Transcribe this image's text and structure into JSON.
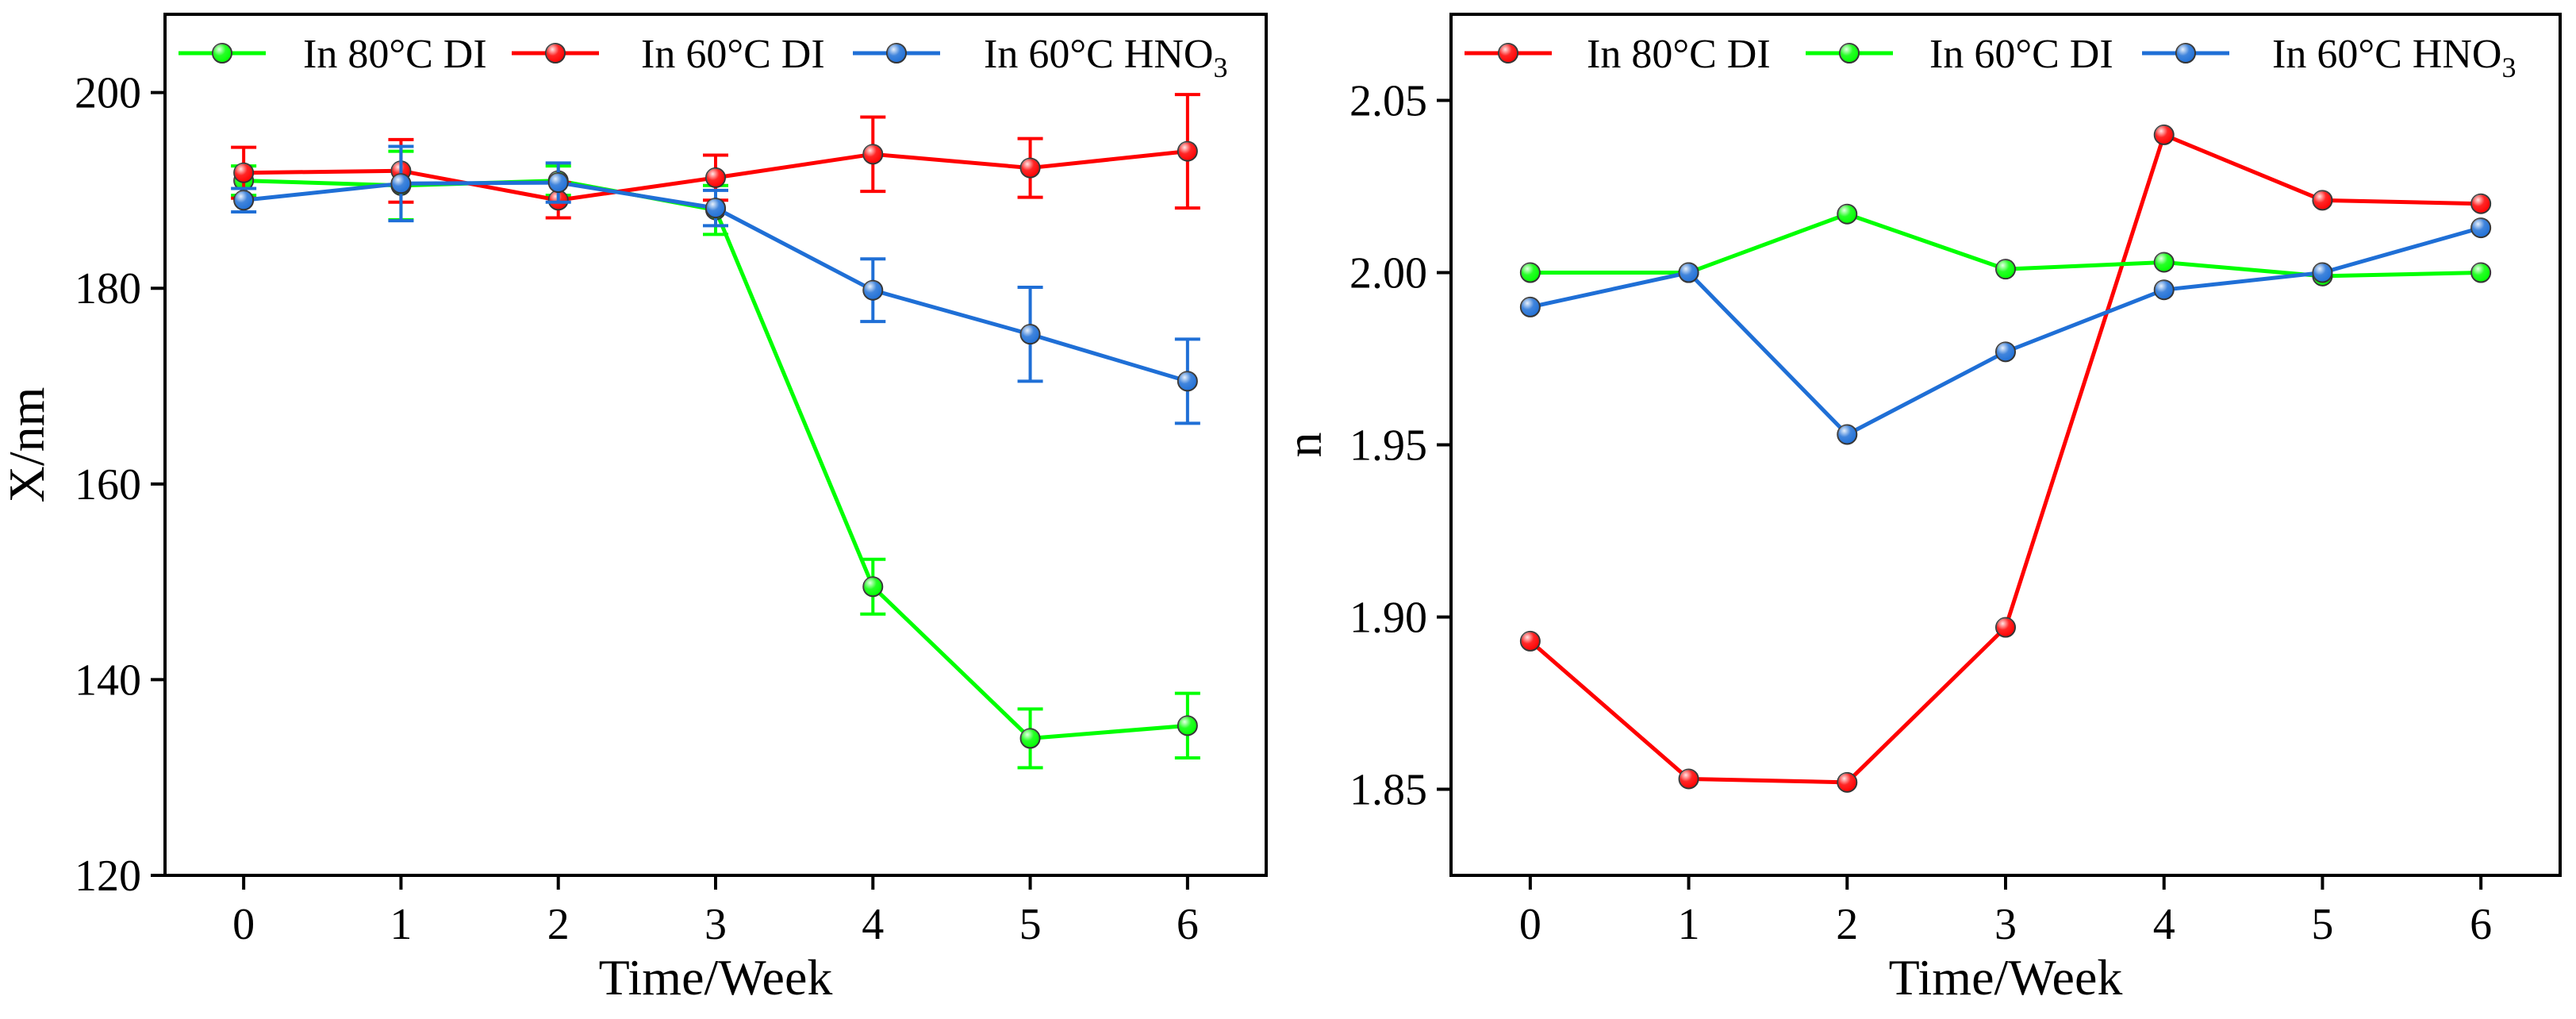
{
  "chart_data": [
    {
      "type": "line",
      "title": "",
      "xlabel": "Time/Week",
      "ylabel": "X/nm",
      "xlim": [
        -0.5,
        6.5
      ],
      "ylim": [
        120,
        208
      ],
      "x": [
        0,
        1,
        2,
        3,
        4,
        5,
        6
      ],
      "xticks": [
        "0",
        "1",
        "2",
        "3",
        "4",
        "5",
        "6"
      ],
      "yticks": [
        120,
        140,
        160,
        180,
        200
      ],
      "legend": "top",
      "series": [
        {
          "name": "In 80°C DI",
          "name_prefix": "In 80°C DI",
          "name_sub": "",
          "name_suffix": "",
          "color": "#00ff00",
          "values": [
            191,
            190.5,
            191,
            188,
            149.5,
            134,
            135.3
          ],
          "errors": [
            1.5,
            3.5,
            1.5,
            2.5,
            2.8,
            3.0,
            3.3
          ]
        },
        {
          "name": "In 60°C DI",
          "name_prefix": "In 60°C DI",
          "name_sub": "",
          "name_suffix": "",
          "color": "#ff0000",
          "values": [
            191.8,
            192,
            189,
            191.3,
            193.7,
            192.3,
            194
          ],
          "errors": [
            2.6,
            3.2,
            1.8,
            2.3,
            3.8,
            3.0,
            5.8
          ]
        },
        {
          "name": "In 60°C HNO3",
          "name_prefix": "In 60°C HNO",
          "name_sub": "3",
          "name_suffix": "",
          "color": "#1f6fd6",
          "values": [
            189,
            190.7,
            190.8,
            188.2,
            179.8,
            175.3,
            170.5
          ],
          "errors": [
            1.2,
            3.8,
            2.0,
            1.8,
            3.2,
            4.8,
            4.3
          ]
        }
      ]
    },
    {
      "type": "line",
      "title": "",
      "xlabel": "Time/Week",
      "ylabel": "n",
      "xlim": [
        -0.5,
        6.5
      ],
      "ylim": [
        1.825,
        2.075
      ],
      "x": [
        0,
        1,
        2,
        3,
        4,
        5,
        6
      ],
      "xticks": [
        "0",
        "1",
        "2",
        "3",
        "4",
        "5",
        "6"
      ],
      "yticks": [
        "1.85",
        "1.90",
        "1.95",
        "2.00",
        "2.05"
      ],
      "legend": "top",
      "series": [
        {
          "name": "In 80°C DI",
          "name_prefix": "In 80°C DI",
          "name_sub": "",
          "name_suffix": "",
          "color": "#ff0000",
          "values": [
            1.893,
            1.853,
            1.852,
            1.897,
            2.04,
            2.021,
            2.02
          ]
        },
        {
          "name": "In 60°C DI",
          "name_prefix": "In 60°C DI",
          "name_sub": "",
          "name_suffix": "",
          "color": "#00ff00",
          "values": [
            2.0,
            2.0,
            2.017,
            2.001,
            2.003,
            1.999,
            2.0
          ]
        },
        {
          "name": "In 60°C HNO3",
          "name_prefix": "In 60°C HNO",
          "name_sub": "3",
          "name_suffix": "",
          "color": "#1f6fd6",
          "values": [
            1.99,
            2.0,
            1.953,
            1.977,
            1.995,
            2.0,
            2.013
          ]
        }
      ]
    }
  ]
}
